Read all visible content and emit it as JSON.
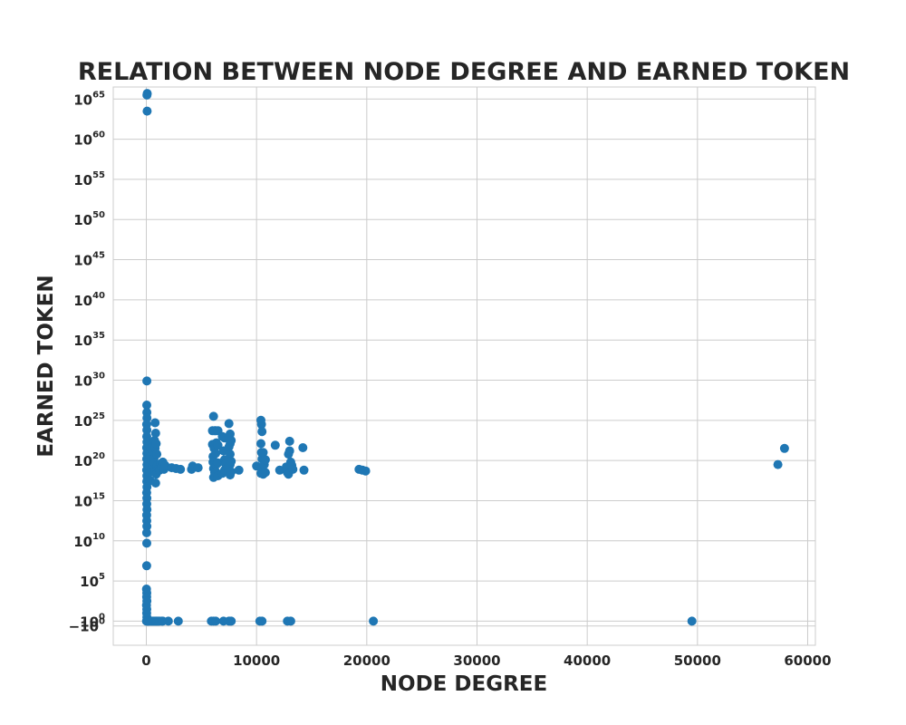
{
  "chart_data": {
    "type": "scatter",
    "title": "RELATION BETWEEN NODE DEGREE AND EARNED TOKEN",
    "xlabel": "NODE DEGREE",
    "ylabel": "EARNED TOKEN",
    "y_scale": "symlog",
    "xlim": [
      -3000,
      60700
    ],
    "ylim_exp": [
      -3,
      66.5
    ],
    "grid": true,
    "legend": "none",
    "marker_color": "#1f77b4",
    "x_ticks": [
      {
        "value": 0,
        "label": "0"
      },
      {
        "value": 10000,
        "label": "10000"
      },
      {
        "value": 20000,
        "label": "20000"
      },
      {
        "value": 30000,
        "label": "30000"
      },
      {
        "value": 40000,
        "label": "40000"
      },
      {
        "value": 50000,
        "label": "50000"
      },
      {
        "value": 60000,
        "label": "60000"
      }
    ],
    "y_ticks": [
      {
        "exp": -0.6,
        "base": "−10",
        "sup": "0"
      },
      {
        "exp": 0,
        "base": "10",
        "sup": "0"
      },
      {
        "exp": 5,
        "base": "10",
        "sup": "5"
      },
      {
        "exp": 10,
        "base": "10",
        "sup": "10"
      },
      {
        "exp": 15,
        "base": "10",
        "sup": "15"
      },
      {
        "exp": 20,
        "base": "10",
        "sup": "20"
      },
      {
        "exp": 25,
        "base": "10",
        "sup": "25"
      },
      {
        "exp": 30,
        "base": "10",
        "sup": "30"
      },
      {
        "exp": 35,
        "base": "10",
        "sup": "35"
      },
      {
        "exp": 40,
        "base": "10",
        "sup": "40"
      },
      {
        "exp": 45,
        "base": "10",
        "sup": "45"
      },
      {
        "exp": 50,
        "base": "10",
        "sup": "50"
      },
      {
        "exp": 55,
        "base": "10",
        "sup": "55"
      },
      {
        "exp": 60,
        "base": "10",
        "sup": "60"
      },
      {
        "exp": 65,
        "base": "10",
        "sup": "65"
      }
    ],
    "points": [
      [
        80,
        65.7
      ],
      [
        60,
        65.5
      ],
      [
        70,
        63.5
      ],
      [
        50,
        29.9
      ],
      [
        40,
        26.9
      ],
      [
        50,
        26.0
      ],
      [
        60,
        25.3
      ],
      [
        30,
        24.5
      ],
      [
        50,
        23.8
      ],
      [
        40,
        23.0
      ],
      [
        60,
        22.3
      ],
      [
        30,
        21.6
      ],
      [
        50,
        20.9
      ],
      [
        40,
        20.2
      ],
      [
        60,
        19.5
      ],
      [
        30,
        18.8
      ],
      [
        50,
        18.1
      ],
      [
        40,
        17.4
      ],
      [
        60,
        16.7
      ],
      [
        30,
        16.0
      ],
      [
        50,
        15.3
      ],
      [
        40,
        14.6
      ],
      [
        60,
        13.9
      ],
      [
        30,
        13.2
      ],
      [
        40,
        12.5
      ],
      [
        50,
        11.8
      ],
      [
        30,
        11.0
      ],
      [
        40,
        9.7
      ],
      [
        30,
        6.9
      ],
      [
        20,
        4.0
      ],
      [
        40,
        3.5
      ],
      [
        30,
        3.0
      ],
      [
        50,
        2.5
      ],
      [
        20,
        2.0
      ],
      [
        40,
        1.5
      ],
      [
        30,
        1.0
      ],
      [
        50,
        0.5
      ],
      [
        20,
        0
      ],
      [
        200,
        21.0
      ],
      [
        250,
        20.0
      ],
      [
        300,
        19.0
      ],
      [
        350,
        20.5
      ],
      [
        250,
        22.0
      ],
      [
        300,
        18.5
      ],
      [
        200,
        19.5
      ],
      [
        400,
        21.5
      ],
      [
        450,
        20.0
      ],
      [
        500,
        19.0
      ],
      [
        350,
        17.5
      ],
      [
        600,
        19.5
      ],
      [
        650,
        21.0
      ],
      [
        700,
        20.3
      ],
      [
        750,
        22.5
      ],
      [
        800,
        24.7
      ],
      [
        850,
        23.4
      ],
      [
        800,
        21.5
      ],
      [
        750,
        19.7
      ],
      [
        800,
        18.6
      ],
      [
        850,
        17.2
      ],
      [
        900,
        18.3
      ],
      [
        950,
        20.8
      ],
      [
        1000,
        19.4
      ],
      [
        900,
        22.1
      ],
      [
        1100,
        19.0
      ],
      [
        1200,
        18.8
      ],
      [
        1300,
        19.6
      ],
      [
        1400,
        19.2
      ],
      [
        1500,
        19.8
      ],
      [
        1600,
        18.9
      ],
      [
        1700,
        19.4
      ],
      [
        2300,
        19.1
      ],
      [
        2700,
        19.0
      ],
      [
        3100,
        18.9
      ],
      [
        4100,
        18.9
      ],
      [
        4200,
        19.3
      ],
      [
        4700,
        19.1
      ],
      [
        6100,
        25.5
      ],
      [
        6000,
        22.0
      ],
      [
        6050,
        20.5
      ],
      [
        6100,
        19.0
      ],
      [
        6150,
        21.5
      ],
      [
        6200,
        18.5
      ],
      [
        6050,
        19.8
      ],
      [
        6300,
        23.7
      ],
      [
        6350,
        22.2
      ],
      [
        6300,
        20.9
      ],
      [
        6350,
        19.5
      ],
      [
        6300,
        18.6
      ],
      [
        6200,
        23.7
      ],
      [
        6000,
        23.7
      ],
      [
        6100,
        17.9
      ],
      [
        6500,
        23.7
      ],
      [
        6500,
        21.9
      ],
      [
        6500,
        19.7
      ],
      [
        6500,
        18.1
      ],
      [
        6900,
        23.0
      ],
      [
        6900,
        18.4
      ],
      [
        7000,
        21.2
      ],
      [
        7100,
        20.1
      ],
      [
        7100,
        18.8
      ],
      [
        7100,
        22.8
      ],
      [
        7200,
        19.6
      ],
      [
        7400,
        19.1
      ],
      [
        7500,
        24.6
      ],
      [
        7600,
        23.3
      ],
      [
        7600,
        22.1
      ],
      [
        7600,
        20.8
      ],
      [
        7600,
        19.5
      ],
      [
        7600,
        18.2
      ],
      [
        7500,
        21.7
      ],
      [
        7700,
        22.5
      ],
      [
        7700,
        19.9
      ],
      [
        7700,
        18.6
      ],
      [
        8400,
        18.8
      ],
      [
        10000,
        19.3
      ],
      [
        10400,
        25.0
      ],
      [
        10450,
        24.5
      ],
      [
        10500,
        23.6
      ],
      [
        10400,
        22.1
      ],
      [
        10450,
        21.0
      ],
      [
        10500,
        20.2
      ],
      [
        10450,
        19.1
      ],
      [
        10400,
        18.4
      ],
      [
        10600,
        18.3
      ],
      [
        10700,
        19.5
      ],
      [
        10800,
        18.5
      ],
      [
        10600,
        21.0
      ],
      [
        10800,
        20.1
      ],
      [
        11700,
        21.9
      ],
      [
        12100,
        18.8
      ],
      [
        12700,
        19.2
      ],
      [
        12800,
        18.5
      ],
      [
        12900,
        20.8
      ],
      [
        12900,
        18.3
      ],
      [
        13000,
        22.4
      ],
      [
        13000,
        21.2
      ],
      [
        13100,
        19.8
      ],
      [
        13200,
        19.4
      ],
      [
        13300,
        18.9
      ],
      [
        14200,
        21.6
      ],
      [
        14300,
        18.8
      ],
      [
        19300,
        18.9
      ],
      [
        19600,
        18.8
      ],
      [
        19900,
        18.7
      ],
      [
        57300,
        19.5
      ],
      [
        57900,
        21.5
      ],
      [
        100,
        0
      ],
      [
        150,
        0
      ],
      [
        200,
        0
      ],
      [
        300,
        0
      ],
      [
        400,
        0
      ],
      [
        500,
        0
      ],
      [
        600,
        0
      ],
      [
        700,
        0
      ],
      [
        800,
        0
      ],
      [
        900,
        0
      ],
      [
        1000,
        0
      ],
      [
        1100,
        0
      ],
      [
        1200,
        0
      ],
      [
        1400,
        0
      ],
      [
        1500,
        0
      ],
      [
        2000,
        0
      ],
      [
        2900,
        0
      ],
      [
        5900,
        0
      ],
      [
        6100,
        0
      ],
      [
        6300,
        0
      ],
      [
        7000,
        0
      ],
      [
        7500,
        0
      ],
      [
        7700,
        0
      ],
      [
        10300,
        0
      ],
      [
        10500,
        0
      ],
      [
        12800,
        0
      ],
      [
        13100,
        0
      ],
      [
        20600,
        0
      ],
      [
        49500,
        0
      ]
    ]
  }
}
